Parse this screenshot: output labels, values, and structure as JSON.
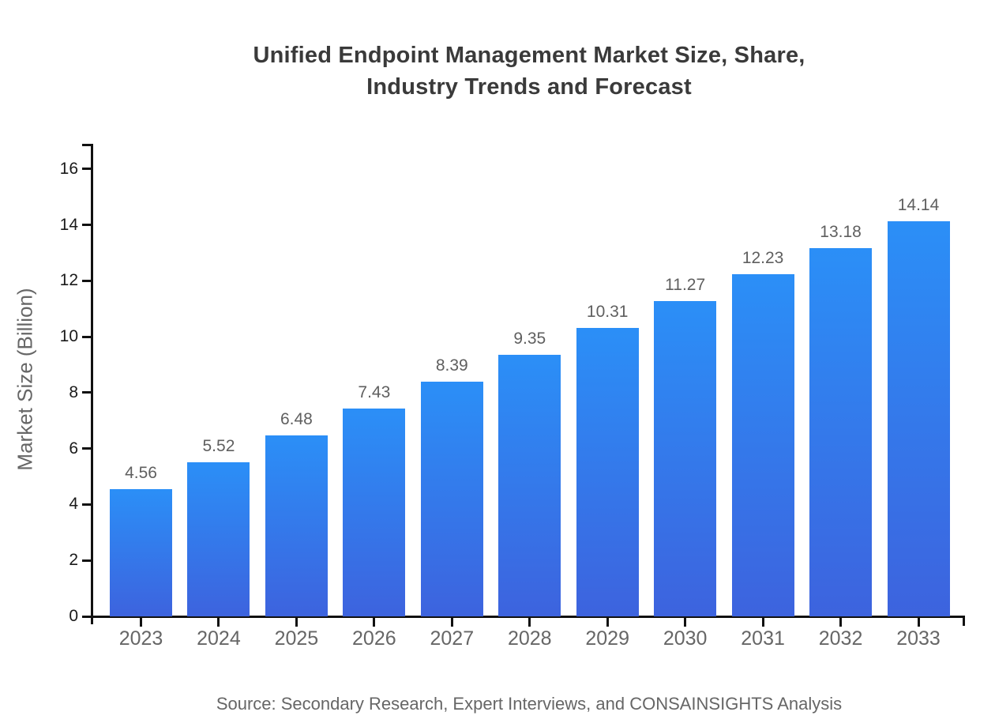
{
  "page": {
    "background": "#ffffff"
  },
  "chart_data": {
    "type": "bar",
    "title_line1": "Unified Endpoint Management Market Size, Share,",
    "title_line2": "Industry Trends and Forecast",
    "ylabel": "Market Size (Billion)",
    "xlabel": "",
    "categories": [
      "2023",
      "2024",
      "2025",
      "2026",
      "2027",
      "2028",
      "2029",
      "2030",
      "2031",
      "2032",
      "2033"
    ],
    "values": [
      4.56,
      5.52,
      6.48,
      7.43,
      8.39,
      9.35,
      10.31,
      11.27,
      12.23,
      13.18,
      14.14
    ],
    "value_labels": [
      "4.56",
      "5.52",
      "6.48",
      "7.43",
      "8.39",
      "9.35",
      "10.31",
      "11.27",
      "12.23",
      "13.18",
      "14.14"
    ],
    "yticks": [
      0,
      2,
      4,
      6,
      8,
      10,
      12,
      14,
      16
    ],
    "ylim": [
      0,
      16.9
    ],
    "grid": false,
    "legend_position": "none",
    "source": "Source: Secondary Research, Expert Interviews, and CONSAINSIGHTS Analysis",
    "colors": {
      "bar_gradient_top": "#2b8ff7",
      "bar_gradient_bottom": "#3d63de",
      "axis": "#111111",
      "ytick_label": "#1a1a1a",
      "xtick_label": "#666666",
      "value_label": "#5f5f5f",
      "title": "#3a3a3a",
      "muted_text": "#666666"
    }
  }
}
